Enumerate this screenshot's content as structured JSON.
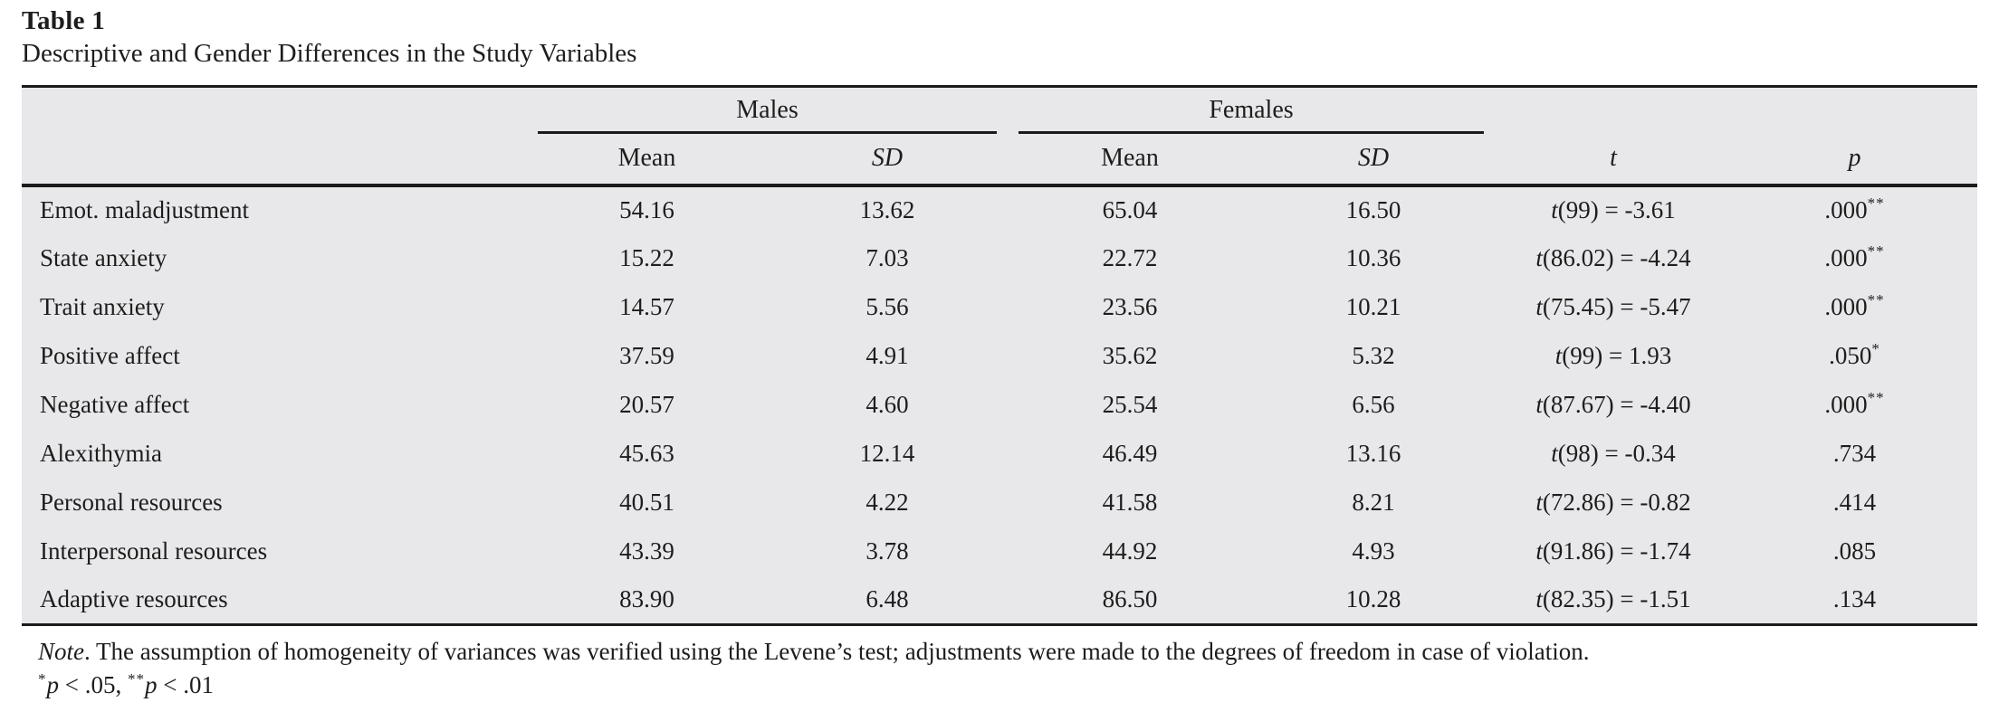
{
  "title": "Table 1",
  "caption": "Descriptive and Gender Differences in the Study Variables",
  "colors": {
    "table_background": "#e8e8ea",
    "rule": "#1b1b1b",
    "text": "#1d1d1d",
    "page_background": "#ffffff"
  },
  "table": {
    "group_headers": {
      "males": "Males",
      "females": "Females"
    },
    "sub_headers": {
      "mean": "Mean",
      "sd": "SD",
      "t": "t",
      "p": "p"
    },
    "rows": [
      {
        "label": "Emot. maladjustment",
        "m_mean": "54.16",
        "m_sd": "13.62",
        "f_mean": "65.04",
        "f_sd": "16.50",
        "t_stat": "t(99) = -3.61",
        "p": ".000",
        "stars": "**"
      },
      {
        "label": "State anxiety",
        "m_mean": "15.22",
        "m_sd": "7.03",
        "f_mean": "22.72",
        "f_sd": "10.36",
        "t_stat": "t(86.02) = -4.24",
        "p": ".000",
        "stars": "**"
      },
      {
        "label": "Trait anxiety",
        "m_mean": "14.57",
        "m_sd": "5.56",
        "f_mean": "23.56",
        "f_sd": "10.21",
        "t_stat": "t(75.45) = -5.47",
        "p": ".000",
        "stars": "**"
      },
      {
        "label": "Positive affect",
        "m_mean": "37.59",
        "m_sd": "4.91",
        "f_mean": "35.62",
        "f_sd": "5.32",
        "t_stat": "t(99) = 1.93",
        "p": ".050",
        "stars": "*"
      },
      {
        "label": "Negative affect",
        "m_mean": "20.57",
        "m_sd": "4.60",
        "f_mean": "25.54",
        "f_sd": "6.56",
        "t_stat": "t(87.67) = -4.40",
        "p": ".000",
        "stars": "**"
      },
      {
        "label": "Alexithymia",
        "m_mean": "45.63",
        "m_sd": "12.14",
        "f_mean": "46.49",
        "f_sd": "13.16",
        "t_stat": "t(98) = -0.34",
        "p": ".734",
        "stars": ""
      },
      {
        "label": "Personal resources",
        "m_mean": "40.51",
        "m_sd": "4.22",
        "f_mean": "41.58",
        "f_sd": "8.21",
        "t_stat": "t(72.86) = -0.82",
        "p": ".414",
        "stars": ""
      },
      {
        "label": "Interpersonal resources",
        "m_mean": "43.39",
        "m_sd": "3.78",
        "f_mean": "44.92",
        "f_sd": "4.93",
        "t_stat": "t(91.86) = -1.74",
        "p": ".085",
        "stars": ""
      },
      {
        "label": "Adaptive resources",
        "m_mean": "83.90",
        "m_sd": "6.48",
        "f_mean": "86.50",
        "f_sd": "10.28",
        "t_stat": "t(82.35) = -1.51",
        "p": ".134",
        "stars": ""
      }
    ]
  },
  "note": {
    "label": "Note",
    "text": ". The assumption of homogeneity of variances was verified using the Levene’s test; adjustments were made to the degrees of freedom in case of violation."
  },
  "significance": {
    "star1": "*",
    "p1": "p",
    "rest1": " < .05, ",
    "star2": "**",
    "p2": "p",
    "rest2": " < .01"
  }
}
